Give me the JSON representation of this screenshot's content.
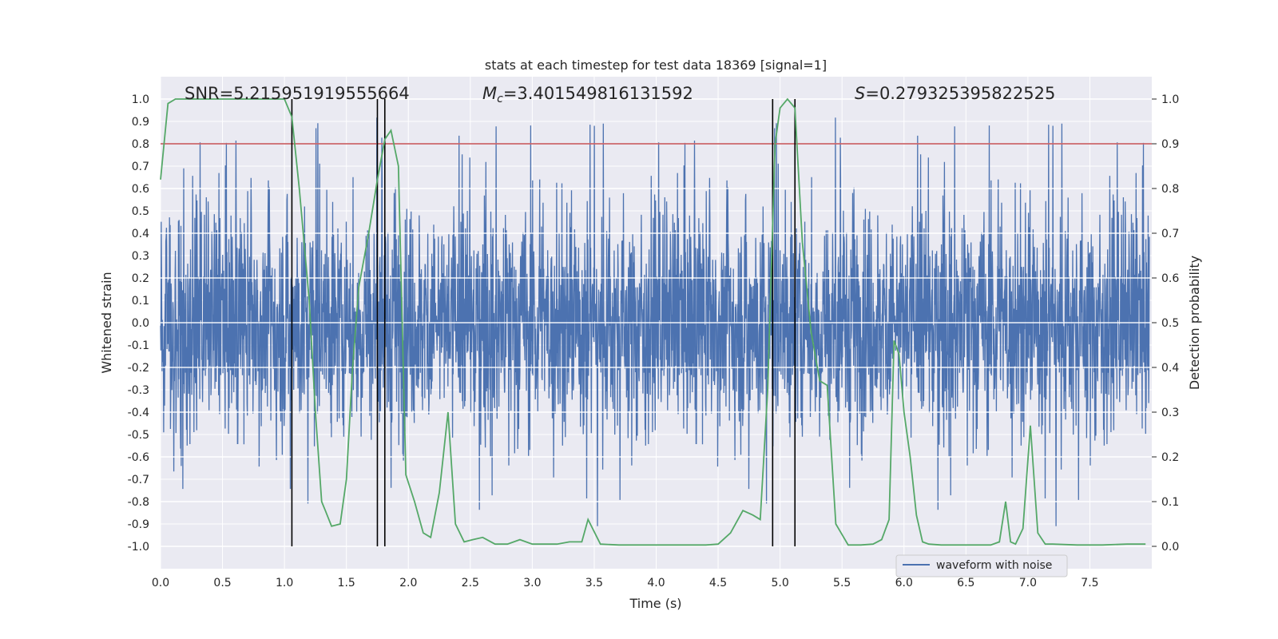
{
  "chart_data": {
    "type": "line",
    "title": "stats at each timestep for test data 18369 [signal=1]",
    "xlabel": "Time (s)",
    "ylabel": "Whitened strain",
    "ylabel_right": "Detection probability",
    "xlim": [
      0.0,
      8.0
    ],
    "ylim": [
      -1.1,
      1.1
    ],
    "ylim_right": [
      -0.05,
      1.05
    ],
    "xticks": [
      "0.0",
      "0.5",
      "1.0",
      "1.5",
      "2.0",
      "2.5",
      "3.0",
      "3.5",
      "4.0",
      "4.5",
      "5.0",
      "5.5",
      "6.0",
      "6.5",
      "7.0",
      "7.5"
    ],
    "yticks": [
      "1.0",
      "0.9",
      "0.8",
      "0.7",
      "0.6",
      "0.5",
      "0.4",
      "0.3",
      "0.2",
      "0.1",
      "0.0",
      "-0.1",
      "-0.2",
      "-0.3",
      "-0.4",
      "-0.5",
      "-0.6",
      "-0.7",
      "-0.8",
      "-0.9",
      "-1.0"
    ],
    "yticks_right": [
      "1.0",
      "0.9",
      "0.8",
      "0.7",
      "0.6",
      "0.5",
      "0.4",
      "0.3",
      "0.2",
      "0.1",
      "0.0"
    ],
    "annotations": {
      "snr": "SNR=5.215951919555664",
      "mc_symbol": "M",
      "mc_subscript": "c",
      "mc_value": "=3.401549816131592",
      "s_symbol": "S",
      "s_value": "=0.279325395822525"
    },
    "threshold": 0.9,
    "vertical_markers": [
      1.06,
      1.75,
      1.81,
      4.94,
      5.12
    ],
    "legend": {
      "entries": [
        "waveform with noise"
      ],
      "location": "lower right"
    },
    "series": [
      {
        "name": "waveform with noise",
        "axis": "left",
        "description": "dense noisy whitened strain sampled over 0-8 s",
        "amplitude_range": [
          -0.99,
          0.98
        ]
      },
      {
        "name": "detection probability",
        "axis": "right",
        "x": [
          0.0,
          0.06,
          0.12,
          0.25,
          0.5,
          0.75,
          1.0,
          1.06,
          1.12,
          1.2,
          1.25,
          1.3,
          1.33,
          1.38,
          1.45,
          1.5,
          1.55,
          1.6,
          1.68,
          1.75,
          1.81,
          1.86,
          1.92,
          1.98,
          2.05,
          2.12,
          2.18,
          2.25,
          2.32,
          2.38,
          2.45,
          2.52,
          2.6,
          2.7,
          2.8,
          2.9,
          3.0,
          3.1,
          3.2,
          3.3,
          3.4,
          3.45,
          3.55,
          3.7,
          3.85,
          4.0,
          4.2,
          4.4,
          4.5,
          4.6,
          4.7,
          4.78,
          4.84,
          4.9,
          4.96,
          5.0,
          5.06,
          5.12,
          5.18,
          5.25,
          5.32,
          5.38,
          5.45,
          5.55,
          5.65,
          5.75,
          5.82,
          5.88,
          5.92,
          5.96,
          6.0,
          6.05,
          6.1,
          6.15,
          6.2,
          6.3,
          6.5,
          6.7,
          6.77,
          6.82,
          6.86,
          6.9,
          6.96,
          7.02,
          7.08,
          7.14,
          7.2,
          7.4,
          7.6,
          7.8,
          7.95
        ],
        "y": [
          0.82,
          0.99,
          1.0,
          1.0,
          1.0,
          1.0,
          1.0,
          0.96,
          0.8,
          0.55,
          0.3,
          0.1,
          0.08,
          0.045,
          0.05,
          0.15,
          0.4,
          0.58,
          0.7,
          0.82,
          0.91,
          0.93,
          0.85,
          0.16,
          0.1,
          0.03,
          0.02,
          0.12,
          0.3,
          0.05,
          0.01,
          0.015,
          0.02,
          0.005,
          0.005,
          0.015,
          0.005,
          0.005,
          0.005,
          0.01,
          0.01,
          0.06,
          0.005,
          0.003,
          0.003,
          0.003,
          0.003,
          0.003,
          0.005,
          0.03,
          0.08,
          0.07,
          0.06,
          0.35,
          0.9,
          0.98,
          1.0,
          0.98,
          0.68,
          0.48,
          0.37,
          0.36,
          0.05,
          0.003,
          0.003,
          0.005,
          0.015,
          0.06,
          0.46,
          0.43,
          0.3,
          0.2,
          0.07,
          0.01,
          0.005,
          0.003,
          0.003,
          0.003,
          0.01,
          0.1,
          0.01,
          0.005,
          0.04,
          0.27,
          0.03,
          0.005,
          0.005,
          0.003,
          0.003,
          0.005,
          0.005
        ]
      }
    ]
  }
}
